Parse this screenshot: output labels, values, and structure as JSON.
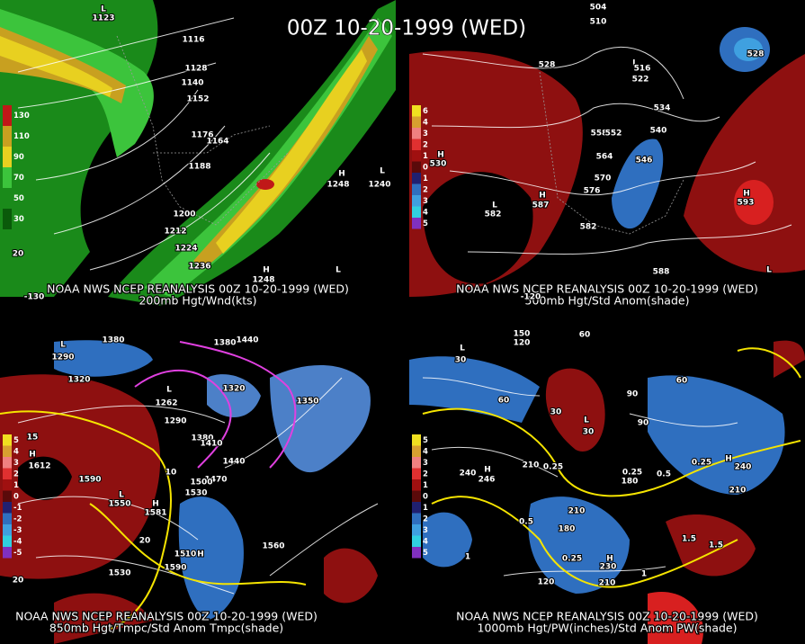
{
  "title": "00Z 10-20-1999 (WED)",
  "panels": [
    {
      "caption": [
        "NOAA NWS NCEP REANALYSIS 00Z 10-20-1999 (WED)",
        "200mb Hgt/Wnd(kts)"
      ],
      "legend": [
        "130",
        "110",
        "90",
        "70",
        "50",
        "30"
      ],
      "labels": [
        "L",
        "1123",
        "1116",
        "1128",
        "1140",
        "1152",
        "1176",
        "1164",
        "1188",
        "1200",
        "1212",
        "1224",
        "1236",
        "H",
        "1248",
        "L",
        "1240",
        "H",
        "1248",
        "L",
        "20",
        "-130"
      ]
    },
    {
      "caption": [
        "NOAA NWS NCEP REANALYSIS 00Z 10-20-1999 (WED)",
        "500mb Hgt/Std Anom(shade)"
      ],
      "legend": [
        "6",
        "4",
        "3",
        "2",
        "1",
        "0",
        "1",
        "2",
        "3",
        "4",
        "5"
      ],
      "labels": [
        "504",
        "510",
        "528",
        "L",
        "516",
        "522",
        "534",
        "540",
        "558",
        "552",
        "564",
        "546",
        "570",
        "576",
        "582",
        "588",
        "H",
        "530",
        "L",
        "582",
        "H",
        "587",
        "H",
        "593",
        "528",
        "L",
        "-120"
      ]
    },
    {
      "caption": [
        "NOAA NWS NCEP REANALYSIS 00Z 10-20-1999 (WED)",
        "850mb Hgt/Tmpc/Std Anom Tmpc(shade)"
      ],
      "legend": [
        "5",
        "4",
        "3",
        "2",
        "1",
        "0",
        "-1",
        "-2",
        "-3",
        "-4",
        "-5"
      ],
      "labels": [
        "1380",
        "1380",
        "1440",
        "L",
        "1290",
        "1320",
        "L",
        "1262",
        "1290",
        "1320",
        "1350",
        "1380",
        "1410",
        "1440",
        "1470",
        "1500",
        "1530",
        "H",
        "1612",
        "15",
        "1590",
        "10",
        "L",
        "1550",
        "H",
        "1581",
        "1560",
        "20",
        "15",
        "10",
        "H",
        "1590",
        "1530",
        "20"
      ]
    },
    {
      "caption": [
        "NOAA NWS NCEP REANALYSIS 00Z 10-20-1999 (WED)",
        "1000mb Hgt/PW(inches)/Std Anom PW(shade)"
      ],
      "legend": [
        "5",
        "4",
        "3",
        "2",
        "1",
        "0",
        "1",
        "2",
        "3",
        "4",
        "5"
      ],
      "labels": [
        "150",
        "120",
        "60",
        "L",
        "30",
        "60",
        "30",
        "L",
        "30",
        "90",
        "90",
        "60",
        "240",
        "H",
        "246",
        "210",
        "0.25",
        "180",
        "0.25",
        "0.5",
        "0.25",
        "H",
        "240",
        "210",
        "0.5",
        "1",
        "180",
        "210",
        "0.25",
        "H",
        "230",
        "120",
        "210",
        "1.5",
        "1.5",
        "1"
      ]
    }
  ]
}
